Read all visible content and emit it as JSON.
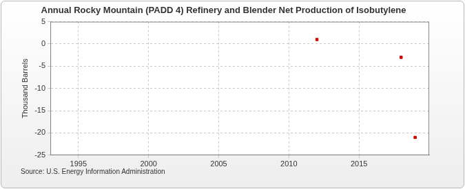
{
  "chart_data": {
    "type": "scatter",
    "title": "Annual Rocky Mountain (PADD 4) Refinery and Blender Net Production of Isobutylene",
    "y_label": "Thousand Barrels",
    "source": "Source: U.S. Energy Information Administration",
    "x": [
      2012,
      2018,
      2019
    ],
    "values": [
      1,
      -3,
      -21
    ],
    "color": "#cc0000",
    "marker": "square",
    "xlim": [
      1993,
      2020
    ],
    "xticks": [
      1995,
      2000,
      2005,
      2010,
      2015
    ],
    "ylim": [
      -25,
      5
    ],
    "yticks": [
      -25,
      -20,
      -15,
      -10,
      -5,
      0,
      5
    ],
    "grid": true
  }
}
